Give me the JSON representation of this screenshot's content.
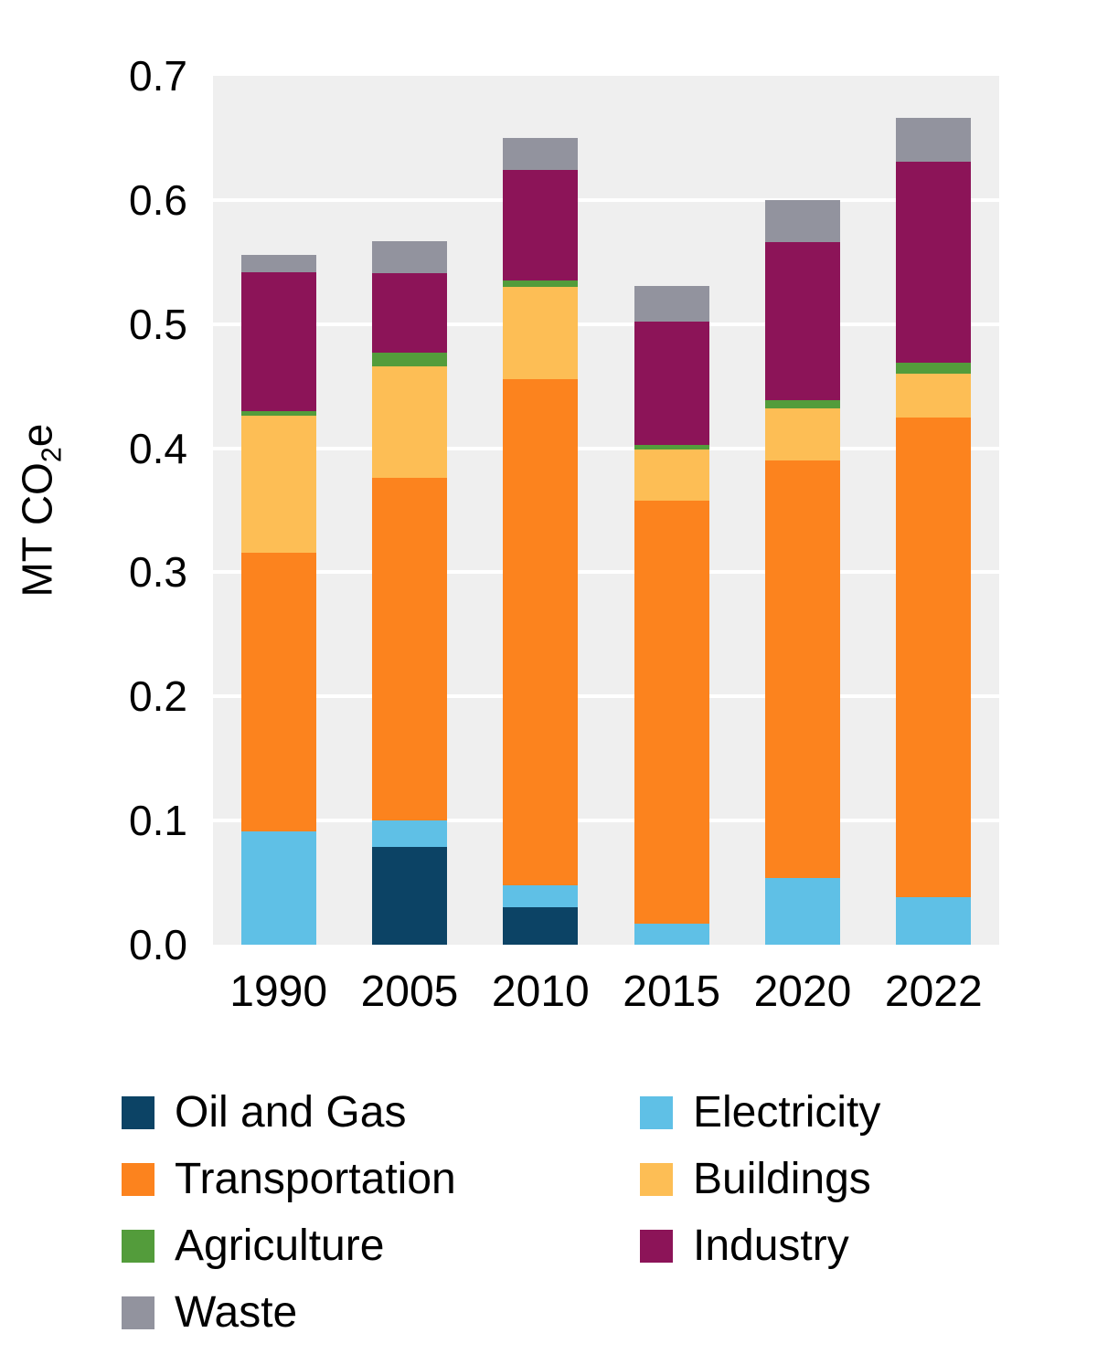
{
  "chart_data": {
    "type": "bar",
    "stacked": true,
    "title": "",
    "ylabel": "MT CO2e",
    "xlabel": "",
    "categories": [
      "1990",
      "2005",
      "2010",
      "2015",
      "2020",
      "2022"
    ],
    "series": [
      {
        "name": "Oil and Gas",
        "color": "#0c4365",
        "values": [
          0.0,
          0.079,
          0.03,
          0.0,
          0.0,
          0.0
        ]
      },
      {
        "name": "Electricity",
        "color": "#5fc0e6",
        "values": [
          0.091,
          0.021,
          0.018,
          0.017,
          0.054,
          0.038
        ]
      },
      {
        "name": "Transportation",
        "color": "#fc831e",
        "values": [
          0.225,
          0.276,
          0.408,
          0.341,
          0.336,
          0.387
        ]
      },
      {
        "name": "Buildings",
        "color": "#fdbe55",
        "values": [
          0.11,
          0.09,
          0.074,
          0.041,
          0.042,
          0.035
        ]
      },
      {
        "name": "Agriculture",
        "color": "#539c3b",
        "values": [
          0.004,
          0.011,
          0.005,
          0.004,
          0.007,
          0.009
        ]
      },
      {
        "name": "Industry",
        "color": "#8c1458",
        "values": [
          0.112,
          0.064,
          0.089,
          0.099,
          0.127,
          0.162
        ]
      },
      {
        "name": "Waste",
        "color": "#92939e",
        "values": [
          0.014,
          0.026,
          0.026,
          0.029,
          0.034,
          0.035
        ]
      }
    ],
    "bar_totals": [
      0.556,
      0.567,
      0.65,
      0.531,
      0.6,
      0.666
    ],
    "ylim": [
      0,
      0.7
    ],
    "yticks": [
      "0.0",
      "0.1",
      "0.2",
      "0.3",
      "0.4",
      "0.5",
      "0.6",
      "0.7"
    ],
    "grid": "horizontal white gridlines on light gray panel",
    "legend_position": "bottom, two columns",
    "plot_background": "#efefef",
    "gridline_color": "#ffffff"
  },
  "axis": {
    "ylabel_prefix": "MT CO",
    "ylabel_sub": "2",
    "ylabel_suffix": "e"
  },
  "legend": {
    "columns": [
      [
        "Oil and Gas",
        "Transportation",
        "Agriculture",
        "Waste"
      ],
      [
        "Electricity",
        "Buildings",
        "Industry"
      ]
    ]
  }
}
